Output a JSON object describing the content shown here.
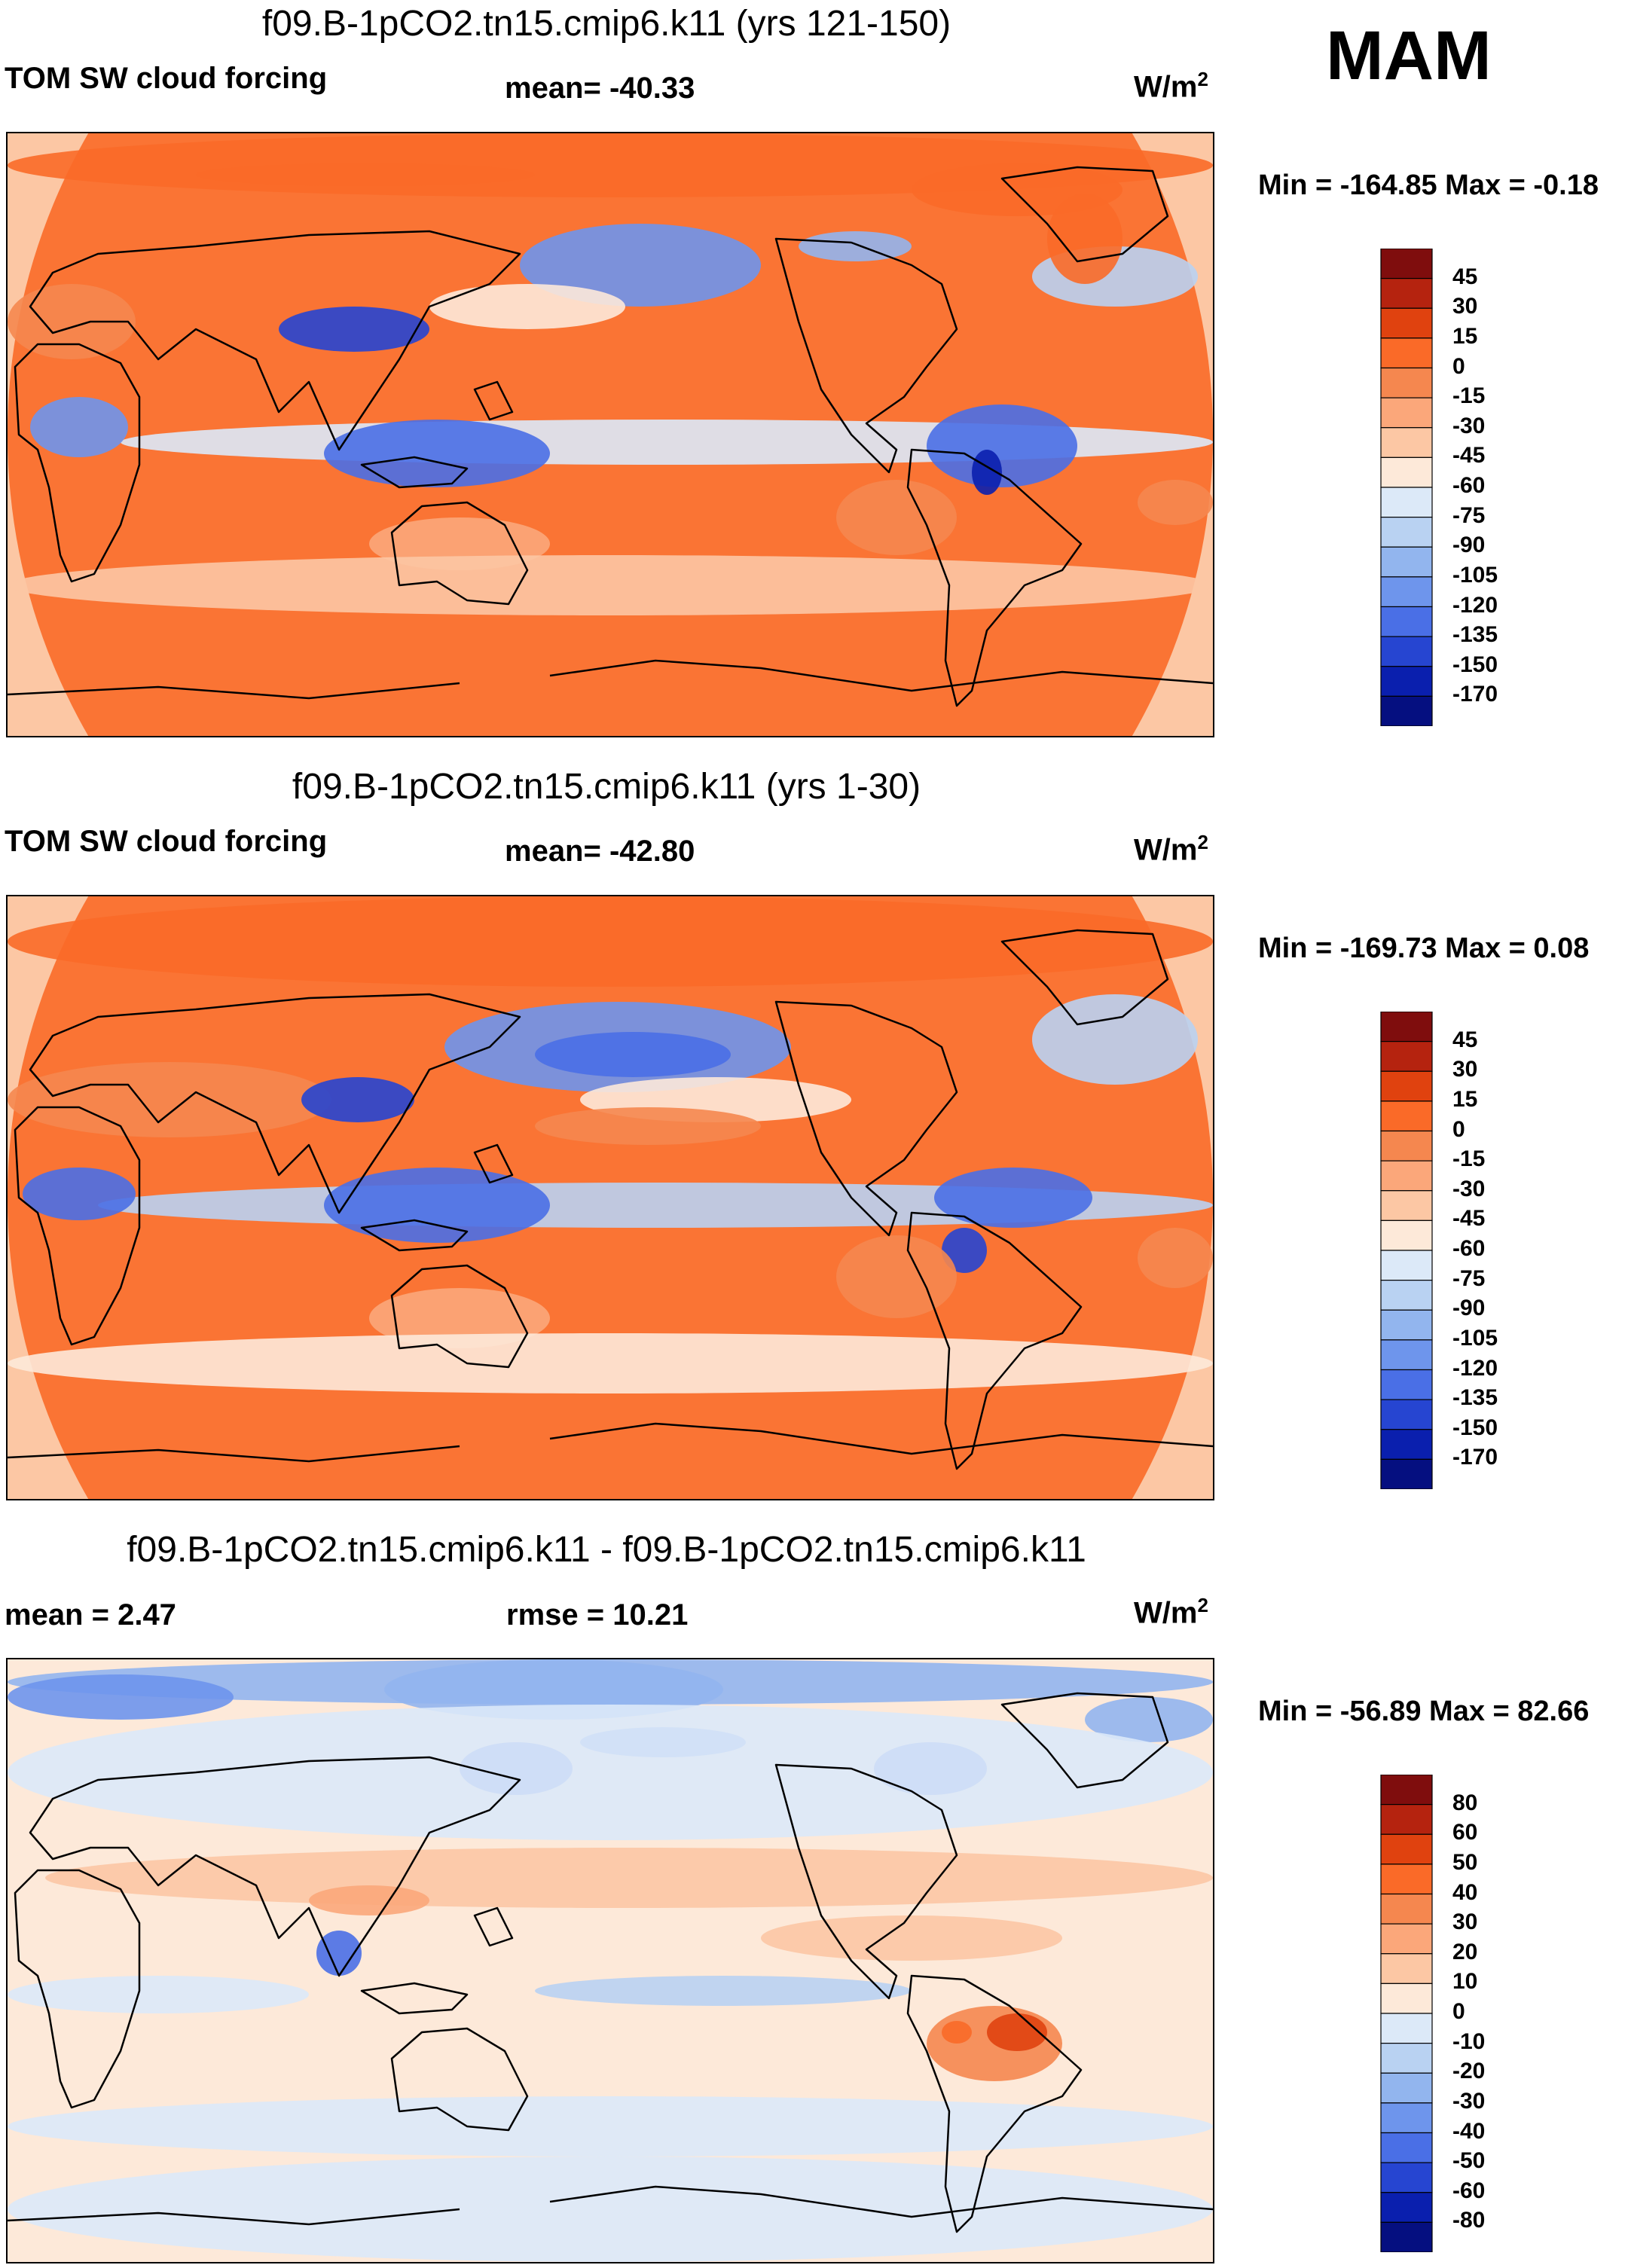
{
  "season": "MAM",
  "units_base": "W/m",
  "units_sup": "2",
  "panels": [
    {
      "title": "f09.B-1pCO2.tn15.cmip6.k11 (yrs 121-150)",
      "variable": "TOM SW cloud forcing",
      "stat": "mean= -40.33",
      "minmax": "Min = -164.85 Max =  -0.18"
    },
    {
      "title": "f09.B-1pCO2.tn15.cmip6.k11 (yrs 1-30)",
      "variable": "TOM SW cloud forcing",
      "stat": "mean= -42.80",
      "minmax": "Min = -169.73 Max =   0.08"
    },
    {
      "title": "f09.B-1pCO2.tn15.cmip6.k11 - f09.B-1pCO2.tn15.cmip6.k11",
      "variable": "mean =   2.47",
      "stat": "rmse =  10.21",
      "minmax": "Min = -56.89 Max =  82.66"
    }
  ],
  "chart_data": [
    {
      "type": "heatmap",
      "title": "f09.B-1pCO2.tn15.cmip6.k11 (yrs 121-150)",
      "variable": "TOM SW cloud forcing",
      "units": "W/m2",
      "mean": -40.33,
      "min": -164.85,
      "max": -0.18,
      "colorbar_levels": [
        "45",
        "30",
        "15",
        "0",
        "-15",
        "-30",
        "-45",
        "-60",
        "-75",
        "-90",
        "-105",
        "-120",
        "-135",
        "-150",
        "-170"
      ],
      "colors": [
        "#7f0d0d",
        "#b5230f",
        "#e0420f",
        "#fa6a28",
        "#f5874f",
        "#fba77a",
        "#fcc7a4",
        "#fde9d9",
        "#dce9f8",
        "#b9d2f2",
        "#92b5ee",
        "#6e95ec",
        "#4a6fe6",
        "#2645d1",
        "#0a1fae",
        "#050f80"
      ]
    },
    {
      "type": "heatmap",
      "title": "f09.B-1pCO2.tn15.cmip6.k11 (yrs 1-30)",
      "variable": "TOM SW cloud forcing",
      "units": "W/m2",
      "mean": -42.8,
      "min": -169.73,
      "max": 0.08,
      "colorbar_levels": [
        "45",
        "30",
        "15",
        "0",
        "-15",
        "-30",
        "-45",
        "-60",
        "-75",
        "-90",
        "-105",
        "-120",
        "-135",
        "-150",
        "-170"
      ],
      "colors": [
        "#7f0d0d",
        "#b5230f",
        "#e0420f",
        "#fa6a28",
        "#f5874f",
        "#fba77a",
        "#fcc7a4",
        "#fde9d9",
        "#dce9f8",
        "#b9d2f2",
        "#92b5ee",
        "#6e95ec",
        "#4a6fe6",
        "#2645d1",
        "#0a1fae",
        "#050f80"
      ]
    },
    {
      "type": "heatmap",
      "title": "f09.B-1pCO2.tn15.cmip6.k11 - f09.B-1pCO2.tn15.cmip6.k11",
      "units": "W/m2",
      "mean": 2.47,
      "rmse": 10.21,
      "min": -56.89,
      "max": 82.66,
      "colorbar_levels": [
        "80",
        "60",
        "50",
        "40",
        "30",
        "20",
        "10",
        "0",
        "-10",
        "-20",
        "-30",
        "-40",
        "-50",
        "-60",
        "-80"
      ],
      "colors": [
        "#7f0d0d",
        "#b5230f",
        "#e0420f",
        "#fa6a28",
        "#f5874f",
        "#fba77a",
        "#fcc7a4",
        "#fde9d9",
        "#dce9f8",
        "#b9d2f2",
        "#92b5ee",
        "#6e95ec",
        "#4a6fe6",
        "#2645d1",
        "#0a1fae",
        "#050f80"
      ]
    }
  ]
}
